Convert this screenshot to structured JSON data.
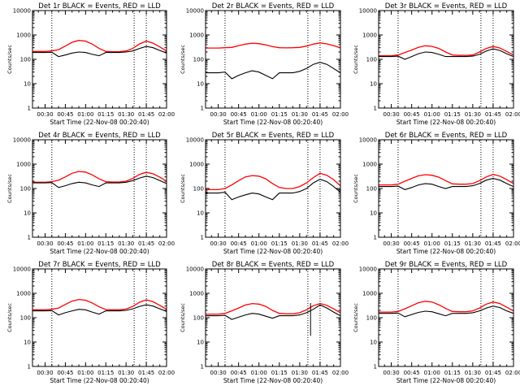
{
  "figure": {
    "background": "#ffffff",
    "event_color": "#000000",
    "lld_color": "#ff0000"
  },
  "chart_data": [
    {
      "type": "line",
      "title": "Det 1r BLACK = Events, RED = LLD",
      "xlabel": "Start Time (22-Nov-08 00:20:40)",
      "ylabel": "Counts/sec",
      "xlim": [
        "00:20:40",
        "02:00"
      ],
      "ylim": [
        1,
        10000
      ],
      "yscale": "log",
      "xticks": [
        "00:30",
        "00:45",
        "01:00",
        "01:15",
        "01:30",
        "01:45",
        "02:00"
      ],
      "yticks": [
        "1",
        "10",
        "100",
        "1000",
        "10000"
      ],
      "vlines": [
        "00:35",
        "01:36",
        "01:45"
      ],
      "x": [
        "00:20:40",
        "00:30",
        "00:35",
        "00:40",
        "00:45",
        "00:50",
        "00:55",
        "01:00",
        "01:05",
        "01:10",
        "01:15",
        "01:20",
        "01:25",
        "01:30",
        "01:35",
        "01:40",
        "01:45",
        "01:50",
        "01:55",
        "02:00"
      ],
      "series": [
        {
          "name": "Events",
          "color": "#000000",
          "values": [
            190,
            190,
            195,
            130,
            150,
            180,
            200,
            190,
            160,
            140,
            190,
            190,
            190,
            200,
            220,
            280,
            340,
            300,
            230,
            180
          ]
        },
        {
          "name": "LLD",
          "color": "#ff0000",
          "values": [
            210,
            210,
            220,
            250,
            350,
            500,
            600,
            560,
            420,
            280,
            210,
            205,
            205,
            220,
            280,
            430,
            560,
            460,
            320,
            220
          ]
        }
      ]
    },
    {
      "type": "line",
      "title": "Det 2r BLACK = Events, RED = LLD",
      "xlabel": "Start Time (22-Nov-08 00:20:40)",
      "ylabel": "Counts/sec",
      "xlim": [
        "00:20:40",
        "02:00"
      ],
      "ylim": [
        1,
        10000
      ],
      "yscale": "log",
      "xticks": [
        "00:30",
        "00:45",
        "01:00",
        "01:15",
        "01:30",
        "01:45",
        "02:00"
      ],
      "yticks": [
        "1",
        "10",
        "100",
        "1000",
        "10000"
      ],
      "vlines": [
        "00:35",
        "01:36",
        "01:45"
      ],
      "x": [
        "00:20:40",
        "00:30",
        "00:35",
        "00:40",
        "00:45",
        "00:50",
        "00:55",
        "01:00",
        "01:05",
        "01:10",
        "01:15",
        "01:20",
        "01:25",
        "01:30",
        "01:35",
        "01:40",
        "01:45",
        "01:50",
        "01:55",
        "02:00"
      ],
      "series": [
        {
          "name": "Events",
          "color": "#000000",
          "values": [
            28,
            28,
            30,
            16,
            22,
            28,
            34,
            30,
            22,
            16,
            28,
            28,
            28,
            32,
            42,
            62,
            75,
            62,
            42,
            28
          ]
        },
        {
          "name": "LLD",
          "color": "#ff0000",
          "values": [
            290,
            290,
            300,
            310,
            360,
            420,
            460,
            440,
            390,
            330,
            300,
            295,
            300,
            310,
            350,
            420,
            470,
            430,
            360,
            300
          ]
        }
      ]
    },
    {
      "type": "line",
      "title": "Det 3r BLACK = Events, RED = LLD",
      "xlabel": "Start Time (22-Nov-08 00:20:40)",
      "ylabel": "Counts/sec",
      "xlim": [
        "00:20:40",
        "02:00"
      ],
      "ylim": [
        1,
        10000
      ],
      "yscale": "log",
      "xticks": [
        "00:30",
        "00:45",
        "01:00",
        "01:15",
        "01:30",
        "01:45",
        "02:00"
      ],
      "yticks": [
        "1",
        "10",
        "100",
        "1000",
        "10000"
      ],
      "vlines": [
        "00:35",
        "01:36",
        "01:45"
      ],
      "x": [
        "00:20:40",
        "00:30",
        "00:35",
        "00:40",
        "00:45",
        "00:50",
        "00:55",
        "01:00",
        "01:05",
        "01:10",
        "01:15",
        "01:20",
        "01:25",
        "01:30",
        "01:35",
        "01:40",
        "01:45",
        "01:50",
        "01:55",
        "02:00"
      ],
      "series": [
        {
          "name": "Events",
          "color": "#000000",
          "values": [
            130,
            130,
            135,
            100,
            130,
            170,
            200,
            190,
            160,
            130,
            130,
            130,
            130,
            135,
            160,
            220,
            270,
            230,
            170,
            130
          ]
        },
        {
          "name": "LLD",
          "color": "#ff0000",
          "values": [
            140,
            140,
            150,
            190,
            240,
            310,
            360,
            340,
            280,
            200,
            150,
            145,
            145,
            150,
            200,
            280,
            340,
            290,
            210,
            150
          ]
        }
      ]
    },
    {
      "type": "line",
      "title": "Det 4r BLACK = Events, RED = LLD",
      "xlabel": "Start Time (22-Nov-08 00:20:40)",
      "ylabel": "Counts/sec",
      "xlim": [
        "00:20:40",
        "02:00"
      ],
      "ylim": [
        1,
        10000
      ],
      "yscale": "log",
      "xticks": [
        "00:30",
        "00:45",
        "01:00",
        "01:15",
        "01:30",
        "01:45",
        "02:00"
      ],
      "yticks": [
        "1",
        "10",
        "100",
        "1000",
        "10000"
      ],
      "vlines": [
        "00:35",
        "01:36",
        "01:45"
      ],
      "x": [
        "00:20:40",
        "00:30",
        "00:35",
        "00:40",
        "00:45",
        "00:50",
        "00:55",
        "01:00",
        "01:05",
        "01:10",
        "01:15",
        "01:20",
        "01:25",
        "01:30",
        "01:35",
        "01:40",
        "01:45",
        "01:50",
        "01:55",
        "02:00"
      ],
      "series": [
        {
          "name": "Events",
          "color": "#000000",
          "values": [
            170,
            170,
            175,
            110,
            130,
            160,
            180,
            170,
            140,
            120,
            170,
            170,
            170,
            180,
            210,
            270,
            320,
            280,
            210,
            160
          ]
        },
        {
          "name": "LLD",
          "color": "#ff0000",
          "values": [
            180,
            180,
            190,
            220,
            300,
            420,
            500,
            470,
            360,
            250,
            190,
            185,
            185,
            200,
            260,
            380,
            460,
            400,
            290,
            200
          ]
        }
      ]
    },
    {
      "type": "line",
      "title": "Det 5r BLACK = Events, RED = LLD",
      "xlabel": "Start Time (22-Nov-08 00:20:40)",
      "ylabel": "Counts/sec",
      "xlim": [
        "00:20:40",
        "02:00"
      ],
      "ylim": [
        1,
        10000
      ],
      "yscale": "log",
      "xticks": [
        "00:30",
        "00:45",
        "01:00",
        "01:15",
        "01:30",
        "01:45",
        "02:00"
      ],
      "yticks": [
        "1",
        "10",
        "100",
        "1000",
        "10000"
      ],
      "vlines": [
        "00:35",
        "01:36",
        "01:45"
      ],
      "x": [
        "00:20:40",
        "00:30",
        "00:35",
        "00:40",
        "00:45",
        "00:50",
        "00:55",
        "01:00",
        "01:05",
        "01:10",
        "01:15",
        "01:20",
        "01:25",
        "01:30",
        "01:35",
        "01:40",
        "01:45",
        "01:50",
        "01:55",
        "02:00"
      ],
      "series": [
        {
          "name": "Events",
          "color": "#000000",
          "values": [
            65,
            65,
            70,
            35,
            45,
            55,
            65,
            60,
            45,
            35,
            65,
            65,
            65,
            75,
            100,
            170,
            240,
            190,
            120,
            70
          ]
        },
        {
          "name": "LLD",
          "color": "#ff0000",
          "values": [
            90,
            90,
            100,
            140,
            210,
            300,
            340,
            320,
            250,
            160,
            110,
            100,
            100,
            120,
            170,
            280,
            420,
            350,
            230,
            130
          ]
        }
      ]
    },
    {
      "type": "line",
      "title": "Det 6r BLACK = Events, RED = LLD",
      "xlabel": "Start Time (22-Nov-08 00:20:40)",
      "ylabel": "Counts/sec",
      "xlim": [
        "00:20:40",
        "02:00"
      ],
      "ylim": [
        1,
        10000
      ],
      "yscale": "log",
      "xticks": [
        "00:30",
        "00:45",
        "01:00",
        "01:15",
        "01:30",
        "01:45",
        "02:00"
      ],
      "yticks": [
        "1",
        "10",
        "100",
        "1000",
        "10000"
      ],
      "vlines": [
        "00:35",
        "01:36",
        "01:45"
      ],
      "x": [
        "00:20:40",
        "00:30",
        "00:35",
        "00:40",
        "00:45",
        "00:50",
        "00:55",
        "01:00",
        "01:05",
        "01:10",
        "01:15",
        "01:20",
        "01:25",
        "01:30",
        "01:35",
        "01:40",
        "01:45",
        "01:50",
        "01:55",
        "02:00"
      ],
      "series": [
        {
          "name": "Events",
          "color": "#000000",
          "values": [
            120,
            120,
            125,
            90,
            110,
            140,
            160,
            150,
            120,
            100,
            120,
            120,
            120,
            130,
            160,
            220,
            260,
            220,
            160,
            120
          ]
        },
        {
          "name": "LLD",
          "color": "#ff0000",
          "values": [
            140,
            140,
            150,
            200,
            260,
            330,
            370,
            350,
            290,
            210,
            155,
            150,
            150,
            160,
            210,
            300,
            380,
            320,
            230,
            160
          ]
        }
      ]
    },
    {
      "type": "line",
      "title": "Det 7r BLACK = Events, RED = LLD",
      "xlabel": "Start Time (22-Nov-08 00:20:40)",
      "ylabel": "Counts/sec",
      "xlim": [
        "00:20:40",
        "02:00"
      ],
      "ylim": [
        1,
        10000
      ],
      "yscale": "log",
      "xticks": [
        "00:30",
        "00:45",
        "01:00",
        "01:15",
        "01:30",
        "01:45",
        "02:00"
      ],
      "yticks": [
        "1",
        "10",
        "100",
        "1000",
        "10000"
      ],
      "vlines": [
        "00:35",
        "01:36",
        "01:45"
      ],
      "x": [
        "00:20:40",
        "00:30",
        "00:35",
        "00:40",
        "00:45",
        "00:50",
        "00:55",
        "01:00",
        "01:05",
        "01:10",
        "01:15",
        "01:20",
        "01:25",
        "01:30",
        "01:35",
        "01:40",
        "01:45",
        "01:50",
        "01:55",
        "02:00"
      ],
      "series": [
        {
          "name": "Events",
          "color": "#000000",
          "values": [
            190,
            190,
            195,
            130,
            160,
            190,
            220,
            210,
            170,
            140,
            190,
            190,
            190,
            200,
            230,
            290,
            340,
            300,
            230,
            180
          ]
        },
        {
          "name": "LLD",
          "color": "#ff0000",
          "values": [
            210,
            210,
            220,
            250,
            350,
            480,
            560,
            520,
            400,
            280,
            215,
            210,
            210,
            225,
            290,
            430,
            540,
            450,
            320,
            220
          ]
        }
      ]
    },
    {
      "type": "line",
      "title": "Det 8r BLACK = Events, RED = LLD",
      "xlabel": "Start Time (22-Nov-08 00:20:40)",
      "ylabel": "Counts/sec",
      "xlim": [
        "00:20:40",
        "02:00"
      ],
      "ylim": [
        1,
        10000
      ],
      "yscale": "log",
      "xticks": [
        "00:30",
        "00:45",
        "01:00",
        "01:15",
        "01:30",
        "01:45",
        "02:00"
      ],
      "yticks": [
        "1",
        "10",
        "100",
        "1000",
        "10000"
      ],
      "vlines": [
        "00:35",
        "01:36",
        "01:45"
      ],
      "x": [
        "00:20:40",
        "00:30",
        "00:35",
        "00:40",
        "00:45",
        "00:50",
        "00:55",
        "01:00",
        "01:05",
        "01:10",
        "01:15",
        "01:20",
        "01:25",
        "01:30",
        "01:35",
        "01:40",
        "01:45",
        "01:50",
        "01:55",
        "02:00"
      ],
      "series": [
        {
          "name": "Events",
          "color": "#000000",
          "values": [
            120,
            120,
            125,
            85,
            105,
            130,
            150,
            140,
            115,
            95,
            120,
            120,
            120,
            130,
            160,
            220,
            330,
            250,
            170,
            120
          ]
        },
        {
          "name": "LLD",
          "color": "#ff0000",
          "values": [
            140,
            140,
            150,
            190,
            250,
            330,
            380,
            360,
            290,
            200,
            150,
            145,
            145,
            160,
            210,
            310,
            380,
            320,
            230,
            160
          ]
        }
      ],
      "spike": {
        "x": "01:38",
        "value": 18
      }
    },
    {
      "type": "line",
      "title": "Det 9r BLACK = Events, RED = LLD",
      "xlabel": "Start Time (22-Nov-08 00:20:40)",
      "ylabel": "Counts/sec",
      "xlim": [
        "00:20:40",
        "02:00"
      ],
      "ylim": [
        1,
        10000
      ],
      "yscale": "log",
      "xticks": [
        "00:30",
        "00:45",
        "01:00",
        "01:15",
        "01:30",
        "01:45",
        "02:00"
      ],
      "yticks": [
        "1",
        "10",
        "100",
        "1000",
        "10000"
      ],
      "vlines": [
        "00:35",
        "01:36",
        "01:45"
      ],
      "x": [
        "00:20:40",
        "00:30",
        "00:35",
        "00:40",
        "00:45",
        "00:50",
        "00:55",
        "01:00",
        "01:05",
        "01:10",
        "01:15",
        "01:20",
        "01:25",
        "01:30",
        "01:35",
        "01:40",
        "01:45",
        "01:50",
        "01:55",
        "02:00"
      ],
      "series": [
        {
          "name": "Events",
          "color": "#000000",
          "values": [
            150,
            150,
            155,
            110,
            135,
            165,
            185,
            175,
            145,
            120,
            150,
            150,
            150,
            160,
            190,
            250,
            300,
            260,
            190,
            150
          ]
        },
        {
          "name": "LLD",
          "color": "#ff0000",
          "values": [
            170,
            170,
            180,
            230,
            310,
            410,
            470,
            440,
            340,
            240,
            180,
            175,
            175,
            190,
            250,
            360,
            440,
            380,
            270,
            190
          ]
        }
      ]
    }
  ]
}
